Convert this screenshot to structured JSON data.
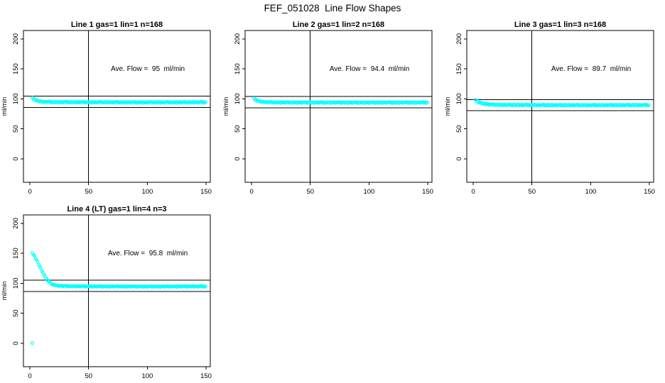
{
  "page": {
    "title": "FEF_051028  Line Flow Shapes"
  },
  "chart_data": [
    {
      "type": "scatter",
      "title": "Line 1 gas=1 lin=1 n=168",
      "annotation": "Ave. Flow =  95  ml/min",
      "ave_flow": 95,
      "n": 168,
      "ylabel": "ml/min",
      "x_ticks": [
        0,
        50,
        100,
        150
      ],
      "y_ticks": [
        0,
        50,
        100,
        150,
        200
      ],
      "xlim": [
        -5.5,
        153.6
      ],
      "ylim": [
        -39,
        214
      ],
      "vline": 50,
      "hlines": [
        104.5,
        85.5
      ],
      "grid": false,
      "point_color": "#00ffff",
      "series": {
        "name": "flow-trace",
        "anchors": [
          [
            2,
            101
          ],
          [
            3,
            100.2
          ],
          [
            4,
            99
          ],
          [
            5,
            98
          ],
          [
            7,
            96.5
          ],
          [
            10,
            95.4
          ],
          [
            15,
            94.9
          ],
          [
            25,
            94.6
          ],
          [
            50,
            94.4
          ],
          [
            100,
            94.2
          ],
          [
            150,
            94.3
          ]
        ],
        "x_end": 150,
        "step": 0.9,
        "noise": [
          0.9,
          -0.4,
          0.5,
          -0.85,
          0.2,
          0.7,
          -0.6,
          0,
          0.8,
          -0.95,
          0.3,
          -0.15,
          0.6,
          -0.7,
          0.1,
          0.45
        ],
        "noise_amp": 1.2
      },
      "outliers": []
    },
    {
      "type": "scatter",
      "title": "Line 2 gas=1 lin=2 n=168",
      "annotation": "Ave. Flow =  94.4  ml/min",
      "ave_flow": 94.4,
      "n": 168,
      "ylabel": "ml/min",
      "x_ticks": [
        0,
        50,
        100,
        150
      ],
      "y_ticks": [
        0,
        50,
        100,
        150,
        200
      ],
      "xlim": [
        -5.5,
        153.6
      ],
      "ylim": [
        -39,
        214
      ],
      "vline": 50,
      "hlines": [
        103.8,
        85.0
      ],
      "grid": false,
      "point_color": "#00ffff",
      "series": {
        "name": "flow-trace",
        "anchors": [
          [
            2,
            100
          ],
          [
            3,
            99
          ],
          [
            4,
            98
          ],
          [
            6,
            96.3
          ],
          [
            9,
            95
          ],
          [
            15,
            94.3
          ],
          [
            25,
            94
          ],
          [
            50,
            93.9
          ],
          [
            100,
            93.8
          ],
          [
            150,
            93.9
          ]
        ],
        "x_end": 150,
        "step": 0.9,
        "noise": [
          0.9,
          -0.4,
          0.5,
          -0.85,
          0.2,
          0.7,
          -0.6,
          0,
          0.8,
          -0.95,
          0.3,
          -0.15,
          0.6,
          -0.7,
          0.1,
          0.45
        ],
        "noise_amp": 1.2
      },
      "outliers": []
    },
    {
      "type": "scatter",
      "title": "Line 3 gas=1 lin=3 n=168",
      "annotation": "Ave. Flow =  89.7  ml/min",
      "ave_flow": 89.7,
      "n": 168,
      "ylabel": "ml/min",
      "x_ticks": [
        0,
        50,
        100,
        150
      ],
      "y_ticks": [
        0,
        50,
        100,
        150,
        200
      ],
      "xlim": [
        -5.5,
        153.6
      ],
      "ylim": [
        -39,
        214
      ],
      "vline": 50,
      "hlines": [
        98.7,
        80.7
      ],
      "grid": false,
      "point_color": "#00ffff",
      "series": {
        "name": "flow-trace",
        "anchors": [
          [
            2,
            97.5
          ],
          [
            3,
            96.5
          ],
          [
            4,
            95.3
          ],
          [
            6,
            93.5
          ],
          [
            9,
            91.8
          ],
          [
            15,
            90.4
          ],
          [
            25,
            89.9
          ],
          [
            50,
            89.6
          ],
          [
            100,
            89.4
          ],
          [
            150,
            89.6
          ]
        ],
        "x_end": 150,
        "step": 0.9,
        "noise": [
          0.9,
          -0.4,
          0.5,
          -0.85,
          0.2,
          0.7,
          -0.6,
          0,
          0.8,
          -0.95,
          0.3,
          -0.15,
          0.6,
          -0.7,
          0.1,
          0.45
        ],
        "noise_amp": 1.2
      },
      "outliers": []
    },
    {
      "type": "scatter",
      "title": "Line 4 (LT) gas=1 lin=4 n=3",
      "annotation": "Ave. Flow =  95.8  ml/min",
      "ave_flow": 95.8,
      "n": 3,
      "ylabel": "ml/min",
      "x_ticks": [
        0,
        50,
        100,
        150
      ],
      "y_ticks": [
        0,
        50,
        100,
        150,
        200
      ],
      "xlim": [
        -5.5,
        153.6
      ],
      "ylim": [
        -39,
        214
      ],
      "vline": 50,
      "hlines": [
        105.4,
        86.2
      ],
      "grid": false,
      "point_color": "#00ffff",
      "series": {
        "name": "flow-trace",
        "anchors": [
          [
            2,
            150
          ],
          [
            4,
            145
          ],
          [
            6,
            137.5
          ],
          [
            8,
            129.5
          ],
          [
            10,
            121.5
          ],
          [
            12,
            114
          ],
          [
            14,
            107.5
          ],
          [
            16,
            102.5
          ],
          [
            18,
            99.3
          ],
          [
            20,
            97.5
          ],
          [
            23,
            96.3
          ],
          [
            27,
            95.6
          ],
          [
            35,
            95.1
          ],
          [
            50,
            94.8
          ],
          [
            100,
            94.6
          ],
          [
            150,
            94.8
          ]
        ],
        "x_end": 150,
        "step": 0.9,
        "noise": [
          0.9,
          -0.4,
          0.5,
          -0.85,
          0.2,
          0.7,
          -0.6,
          0,
          0.8,
          -0.95,
          0.3,
          -0.15,
          0.6,
          -0.7,
          0.1,
          0.45
        ],
        "noise_amp": 0.9
      },
      "outliers": [
        [
          2,
          0.5
        ]
      ]
    }
  ]
}
